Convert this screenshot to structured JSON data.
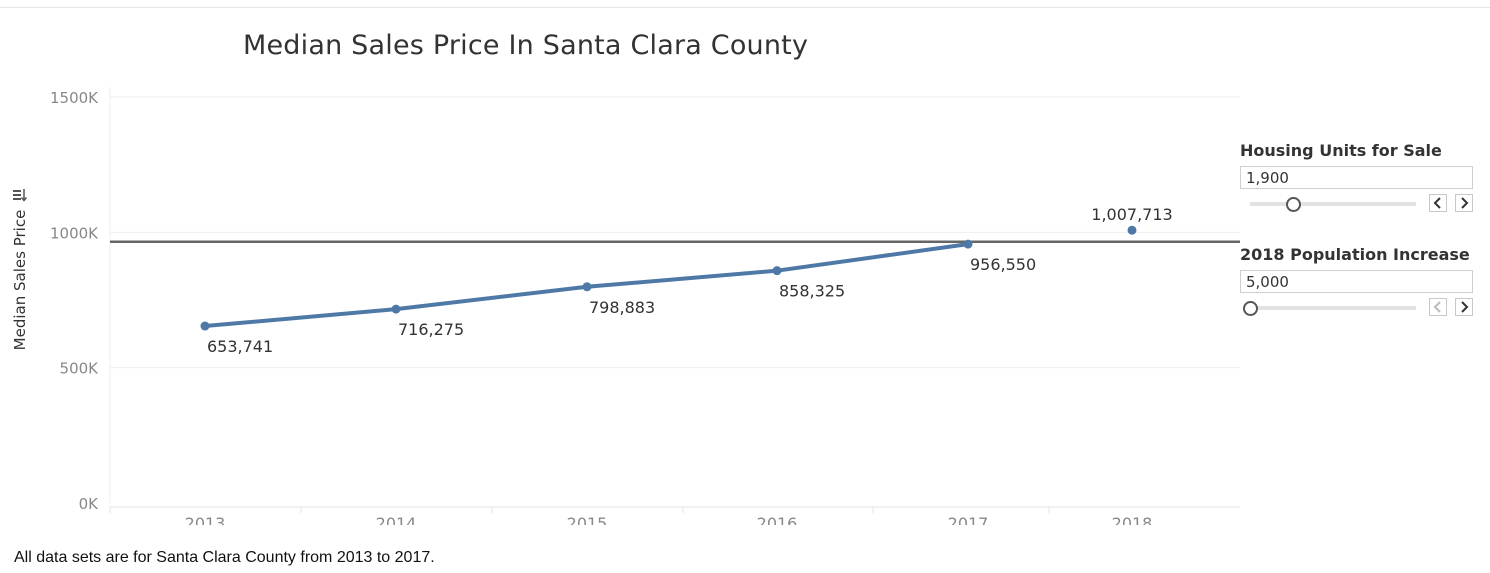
{
  "chart_data": {
    "type": "line",
    "title": "Median Sales Price In Santa Clara County",
    "ylabel": "Median Sales Price",
    "xlabel": "",
    "ylim": [
      0,
      1500000
    ],
    "yticks": [
      0,
      500000,
      1000000,
      1500000
    ],
    "ytick_labels": [
      "0K",
      "500K",
      "1000K",
      "1500K"
    ],
    "categories": [
      "2013",
      "2014",
      "2015",
      "2016",
      "2017",
      "2018"
    ],
    "series": [
      {
        "values": [
          653741,
          716275,
          798883,
          858325,
          956550,
          null
        ],
        "style": "line"
      },
      {
        "values": [
          null,
          null,
          null,
          null,
          null,
          1007713
        ],
        "style": "point"
      }
    ],
    "data_labels": [
      "653,741",
      "716,275",
      "798,883",
      "858,325",
      "956,550",
      "1,007,713"
    ],
    "reference_line": 965000,
    "grid": "horizontal",
    "line_color": "#4e79a7",
    "reference_color": "#666666"
  },
  "footnote": "All data sets are for Santa Clara County from 2013 to 2017.",
  "parameters": [
    {
      "title": "Housing Units for Sale",
      "value": "1,900",
      "slider_fraction": 0.26,
      "prev_enabled": true,
      "next_enabled": true
    },
    {
      "title": "2018 Population Increase",
      "value": "5,000",
      "slider_fraction": 0.0,
      "prev_enabled": false,
      "next_enabled": true
    }
  ],
  "icons": {
    "sort": "sort-icon",
    "prev": "chevron-left-icon",
    "next": "chevron-right-icon"
  }
}
